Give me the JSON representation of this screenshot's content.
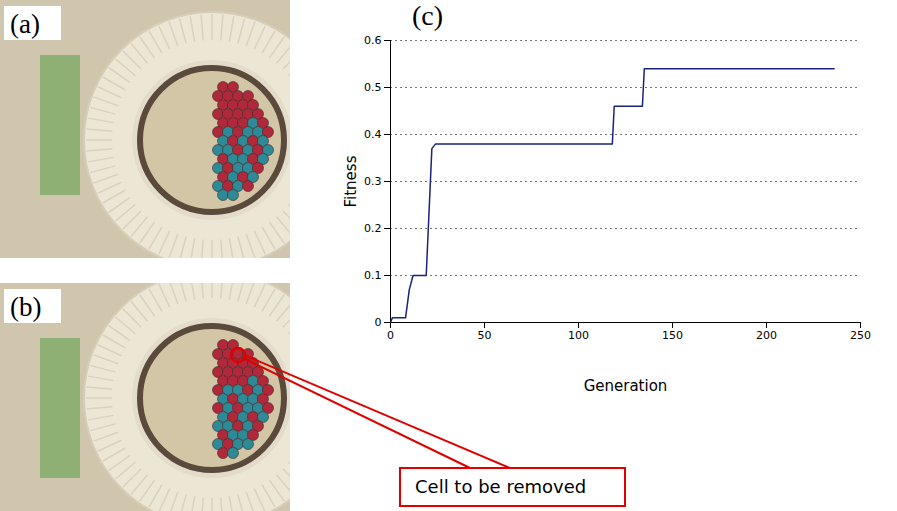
{
  "chart_data": {
    "type": "line",
    "panel_label": "(c)",
    "x_label": "Generation",
    "y_label": "Fitness",
    "x": [
      0,
      1,
      8,
      10,
      12,
      19,
      22,
      24,
      118,
      119,
      134,
      135,
      236
    ],
    "values": [
      0,
      0.01,
      0.01,
      0.07,
      0.1,
      0.1,
      0.37,
      0.38,
      0.38,
      0.46,
      0.46,
      0.54,
      0.54
    ],
    "color": "#1a237e",
    "xlim": [
      0,
      250
    ],
    "xticks": [
      0,
      50,
      100,
      150,
      200,
      250
    ],
    "ylim": [
      0,
      0.6
    ],
    "yticks": [
      0,
      0.1,
      0.2,
      0.3,
      0.4,
      0.5,
      0.6
    ],
    "grid": true
  },
  "photos": [
    {
      "label": "(a)"
    },
    {
      "label": "(b)",
      "callout": "Cell to be removed"
    }
  ]
}
